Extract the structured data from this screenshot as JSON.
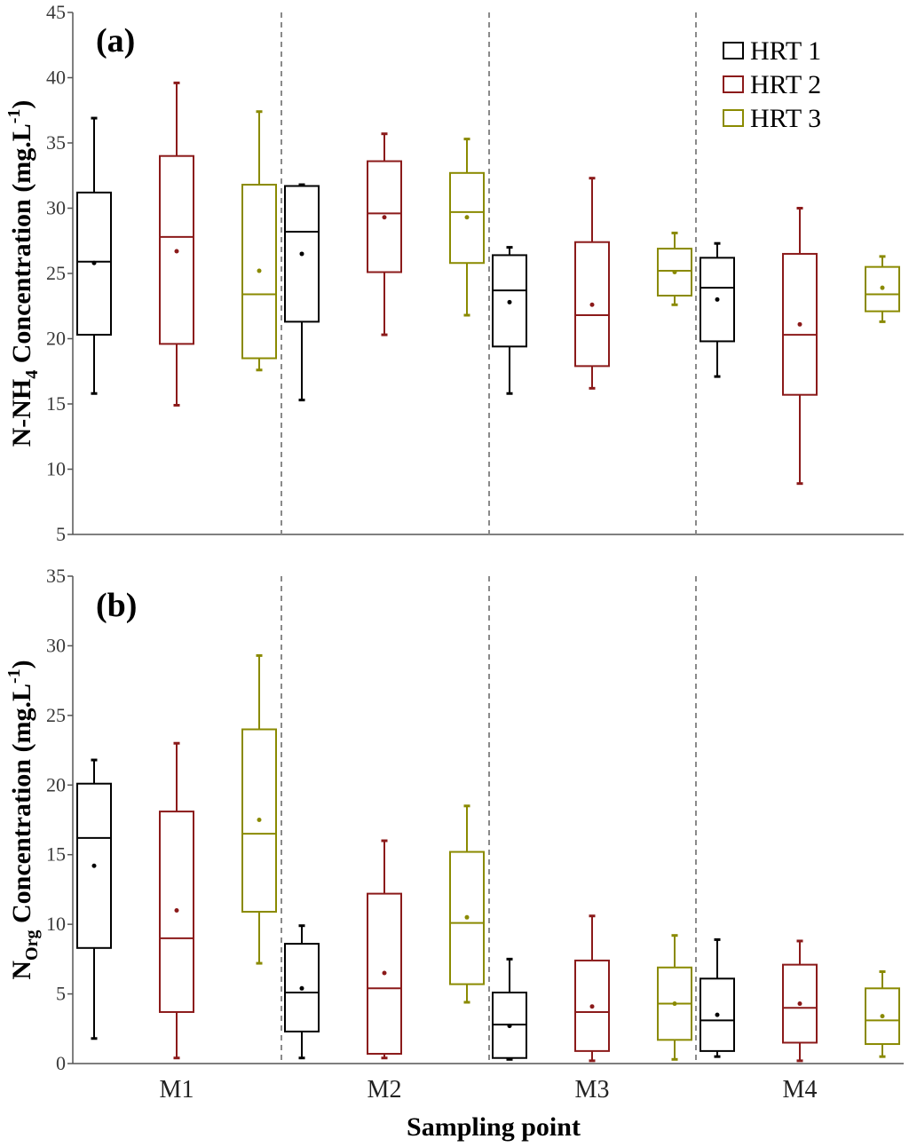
{
  "x_axis_label": "Sampling point",
  "legend_labels": [
    "HRT 1",
    "HRT 2",
    "HRT 3"
  ],
  "colors": {
    "HRT 1": "#000000",
    "HRT 2": "#8b1a1a",
    "HRT 3": "#8a8a00"
  },
  "chart_data": [
    {
      "type": "box",
      "panel_label": "(a)",
      "ylabel_parts": {
        "main": "N-NH",
        "sub": "4",
        "tail": " Concentration (mg.L",
        "sup": "-1",
        "close": ")"
      },
      "ylim": [
        5,
        45
      ],
      "yticks": [
        5,
        10,
        15,
        20,
        25,
        30,
        35,
        40,
        45
      ],
      "categories": [
        "M1",
        "M2",
        "M3",
        "M4"
      ],
      "grid": false,
      "legend_position": "top-right",
      "series": [
        {
          "name": "HRT 1",
          "color": "#000000",
          "boxes": [
            {
              "min": 15.8,
              "q1": 20.3,
              "median": 25.9,
              "q3": 31.2,
              "max": 36.9,
              "mean": 25.8
            },
            {
              "min": 15.3,
              "q1": 21.3,
              "median": 28.2,
              "q3": 31.7,
              "max": 31.8,
              "mean": 26.5
            },
            {
              "min": 15.8,
              "q1": 19.4,
              "median": 23.7,
              "q3": 26.4,
              "max": 27.0,
              "mean": 22.8
            },
            {
              "min": 17.1,
              "q1": 19.8,
              "median": 23.9,
              "q3": 26.2,
              "max": 27.3,
              "mean": 23.0
            }
          ]
        },
        {
          "name": "HRT 2",
          "color": "#8b1a1a",
          "boxes": [
            {
              "min": 14.9,
              "q1": 19.6,
              "median": 27.8,
              "q3": 34.0,
              "max": 39.6,
              "mean": 26.7
            },
            {
              "min": 20.3,
              "q1": 25.1,
              "median": 29.6,
              "q3": 33.6,
              "max": 35.7,
              "mean": 29.3
            },
            {
              "min": 16.2,
              "q1": 17.9,
              "median": 21.8,
              "q3": 27.4,
              "max": 32.3,
              "mean": 22.6
            },
            {
              "min": 8.9,
              "q1": 15.7,
              "median": 20.3,
              "q3": 26.5,
              "max": 30.0,
              "mean": 21.1
            }
          ]
        },
        {
          "name": "HRT 3",
          "color": "#8a8a00",
          "boxes": [
            {
              "min": 17.6,
              "q1": 18.5,
              "median": 23.4,
              "q3": 31.8,
              "max": 37.4,
              "mean": 25.2
            },
            {
              "min": 21.8,
              "q1": 25.8,
              "median": 29.7,
              "q3": 32.7,
              "max": 35.3,
              "mean": 29.3
            },
            {
              "min": 22.6,
              "q1": 23.3,
              "median": 25.2,
              "q3": 26.9,
              "max": 28.1,
              "mean": 25.1
            },
            {
              "min": 21.3,
              "q1": 22.1,
              "median": 23.4,
              "q3": 25.5,
              "max": 26.3,
              "mean": 23.9
            }
          ]
        }
      ]
    },
    {
      "type": "box",
      "panel_label": "(b)",
      "ylabel_parts": {
        "main": "N",
        "sub": "Org",
        "tail": " Concentration (mg.L",
        "sup": "-1",
        "close": ")"
      },
      "ylim": [
        0,
        35
      ],
      "yticks": [
        0,
        5,
        10,
        15,
        20,
        25,
        30,
        35
      ],
      "categories": [
        "M1",
        "M2",
        "M3",
        "M4"
      ],
      "grid": false,
      "series": [
        {
          "name": "HRT 1",
          "color": "#000000",
          "boxes": [
            {
              "min": 1.8,
              "q1": 8.3,
              "median": 16.2,
              "q3": 20.1,
              "max": 21.8,
              "mean": 14.2
            },
            {
              "min": 0.4,
              "q1": 2.3,
              "median": 5.1,
              "q3": 8.6,
              "max": 9.9,
              "mean": 5.4
            },
            {
              "min": 0.3,
              "q1": 0.4,
              "median": 2.8,
              "q3": 5.1,
              "max": 7.5,
              "mean": 2.7
            },
            {
              "min": 0.5,
              "q1": 0.9,
              "median": 3.1,
              "q3": 6.1,
              "max": 8.9,
              "mean": 3.5
            }
          ]
        },
        {
          "name": "HRT 2",
          "color": "#8b1a1a",
          "boxes": [
            {
              "min": 0.4,
              "q1": 3.7,
              "median": 9.0,
              "q3": 18.1,
              "max": 23.0,
              "mean": 11.0
            },
            {
              "min": 0.4,
              "q1": 0.7,
              "median": 5.4,
              "q3": 12.2,
              "max": 16.0,
              "mean": 6.5
            },
            {
              "min": 0.2,
              "q1": 0.9,
              "median": 3.7,
              "q3": 7.4,
              "max": 10.6,
              "mean": 4.1
            },
            {
              "min": 0.2,
              "q1": 1.5,
              "median": 4.0,
              "q3": 7.1,
              "max": 8.8,
              "mean": 4.3
            }
          ]
        },
        {
          "name": "HRT 3",
          "color": "#8a8a00",
          "boxes": [
            {
              "min": 7.2,
              "q1": 10.9,
              "median": 16.5,
              "q3": 24.0,
              "max": 29.3,
              "mean": 17.5
            },
            {
              "min": 4.4,
              "q1": 5.7,
              "median": 10.1,
              "q3": 15.2,
              "max": 18.5,
              "mean": 10.5
            },
            {
              "min": 0.3,
              "q1": 1.7,
              "median": 4.3,
              "q3": 6.9,
              "max": 9.2,
              "mean": 4.3
            },
            {
              "min": 0.5,
              "q1": 1.4,
              "median": 3.1,
              "q3": 5.4,
              "max": 6.6,
              "mean": 3.4
            }
          ]
        }
      ]
    }
  ]
}
